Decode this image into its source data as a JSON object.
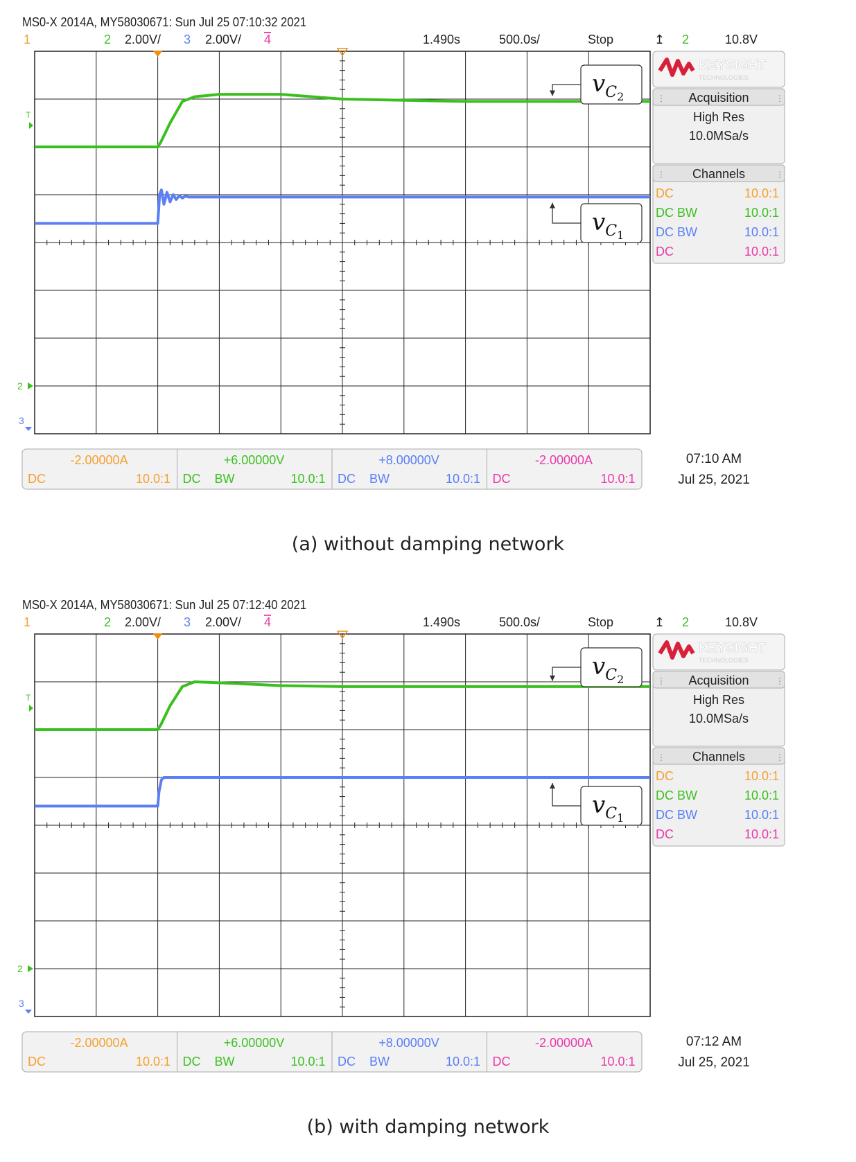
{
  "colors": {
    "ch1": "#f5a030",
    "ch2": "#3ac01e",
    "ch3": "#5b7ff5",
    "ch4": "#e83aa8",
    "grid": "#222222",
    "keysight": "#d8203a"
  },
  "panels": [
    {
      "header": "MS0-X 2014A, MY58030671: Sun Jul 25 07:10:32 2021",
      "status": {
        "ch1": "1",
        "ch2": "2",
        "ch2_scale": "2.00V/",
        "ch3": "3",
        "ch3_scale": "2.00V/",
        "ch4": "4",
        "delay": "1.490s",
        "timebase": "500.0s/",
        "run_state": "Stop",
        "trig_src": "2",
        "trig_level": "10.8V"
      },
      "side": {
        "brand": "KEYSIGHT",
        "brand_sub": "TECHNOLOGIES",
        "acq_title": "Acquisition",
        "acq_mode": "High Res",
        "acq_rate": "10.0MSa/s",
        "channels_title": "Channels",
        "channels": [
          {
            "coupling": "DC",
            "ratio": "10.0:1"
          },
          {
            "coupling": "DC BW",
            "ratio": "10.0:1"
          },
          {
            "coupling": "DC BW",
            "ratio": "10.0:1"
          },
          {
            "coupling": "DC",
            "ratio": "10.0:1"
          }
        ]
      },
      "bottom": [
        {
          "offset": "-2.00000A",
          "coupling": "DC",
          "bw": "",
          "ratio": "10.0:1"
        },
        {
          "offset": "+6.00000V",
          "coupling": "DC",
          "bw": "BW",
          "ratio": "10.0:1"
        },
        {
          "offset": "+8.00000V",
          "coupling": "DC",
          "bw": "BW",
          "ratio": "10.0:1"
        },
        {
          "offset": "-2.00000A",
          "coupling": "DC",
          "bw": "",
          "ratio": "10.0:1"
        }
      ],
      "time": "07:10 AM",
      "date": "Jul 25, 2021",
      "label_top": "v",
      "label_top_sub": "C",
      "label_top_subsub": "2",
      "label_bot": "v",
      "label_bot_sub": "C",
      "label_bot_subsub": "1",
      "caption": "(a) without damping network",
      "ground_marker": "2",
      "ch3_marker": "3",
      "trig_marker": "T"
    },
    {
      "header": "MS0-X 2014A, MY58030671: Sun Jul 25 07:12:40 2021",
      "status": {
        "ch1": "1",
        "ch2": "2",
        "ch2_scale": "2.00V/",
        "ch3": "3",
        "ch3_scale": "2.00V/",
        "ch4": "4",
        "delay": "1.490s",
        "timebase": "500.0s/",
        "run_state": "Stop",
        "trig_src": "2",
        "trig_level": "10.8V"
      },
      "side": {
        "brand": "KEYSIGHT",
        "brand_sub": "TECHNOLOGIES",
        "acq_title": "Acquisition",
        "acq_mode": "High Res",
        "acq_rate": "10.0MSa/s",
        "channels_title": "Channels",
        "channels": [
          {
            "coupling": "DC",
            "ratio": "10.0:1"
          },
          {
            "coupling": "DC BW",
            "ratio": "10.0:1"
          },
          {
            "coupling": "DC BW",
            "ratio": "10.0:1"
          },
          {
            "coupling": "DC",
            "ratio": "10.0:1"
          }
        ]
      },
      "bottom": [
        {
          "offset": "-2.00000A",
          "coupling": "DC",
          "bw": "",
          "ratio": "10.0:1"
        },
        {
          "offset": "+6.00000V",
          "coupling": "DC",
          "bw": "BW",
          "ratio": "10.0:1"
        },
        {
          "offset": "+8.00000V",
          "coupling": "DC",
          "bw": "BW",
          "ratio": "10.0:1"
        },
        {
          "offset": "-2.00000A",
          "coupling": "DC",
          "bw": "",
          "ratio": "10.0:1"
        }
      ],
      "time": "07:12 AM",
      "date": "Jul 25, 2021",
      "label_top": "v",
      "label_top_sub": "C",
      "label_top_subsub": "2",
      "label_bot": "v",
      "label_bot_sub": "C",
      "label_bot_subsub": "1",
      "caption": "(b) with damping network",
      "ground_marker": "2",
      "ch3_marker": "3",
      "trig_marker": "T"
    }
  ],
  "chart_data": [
    {
      "type": "line",
      "x_unit": "divisions",
      "y_unit": "divisions",
      "xlim": [
        0,
        10
      ],
      "ylim": [
        0,
        8
      ],
      "grid": true,
      "series": [
        {
          "name": "vC2",
          "color": "#3ac01e",
          "x": [
            0,
            2.0,
            2.05,
            2.2,
            2.4,
            2.6,
            3.0,
            4.0,
            5.0,
            7.0,
            10.0
          ],
          "y": [
            6.0,
            6.0,
            6.1,
            6.5,
            6.95,
            7.05,
            7.1,
            7.1,
            7.0,
            6.95,
            6.95
          ]
        },
        {
          "name": "vC1",
          "color": "#5b7ff5",
          "x": [
            0,
            2.0,
            2.03,
            2.06,
            2.1,
            2.15,
            2.2,
            2.25,
            2.3,
            2.35,
            2.4,
            2.45,
            2.5,
            2.6,
            10.0
          ],
          "y": [
            4.4,
            4.4,
            5.0,
            5.1,
            4.8,
            5.05,
            4.85,
            5.0,
            4.9,
            4.98,
            4.93,
            4.97,
            4.95,
            4.95,
            4.95
          ]
        }
      ]
    },
    {
      "type": "line",
      "x_unit": "divisions",
      "y_unit": "divisions",
      "xlim": [
        0,
        10
      ],
      "ylim": [
        0,
        8
      ],
      "grid": true,
      "series": [
        {
          "name": "vC2",
          "color": "#3ac01e",
          "x": [
            0,
            2.0,
            2.05,
            2.2,
            2.4,
            2.6,
            3.0,
            4.0,
            5.0,
            7.0,
            10.0
          ],
          "y": [
            6.0,
            6.0,
            6.1,
            6.5,
            6.9,
            7.0,
            6.98,
            6.92,
            6.9,
            6.9,
            6.9
          ]
        },
        {
          "name": "vC1",
          "color": "#5b7ff5",
          "x": [
            0,
            2.0,
            2.02,
            2.06,
            2.1,
            10.0
          ],
          "y": [
            4.4,
            4.4,
            4.7,
            4.95,
            5.0,
            5.0
          ]
        }
      ]
    }
  ]
}
